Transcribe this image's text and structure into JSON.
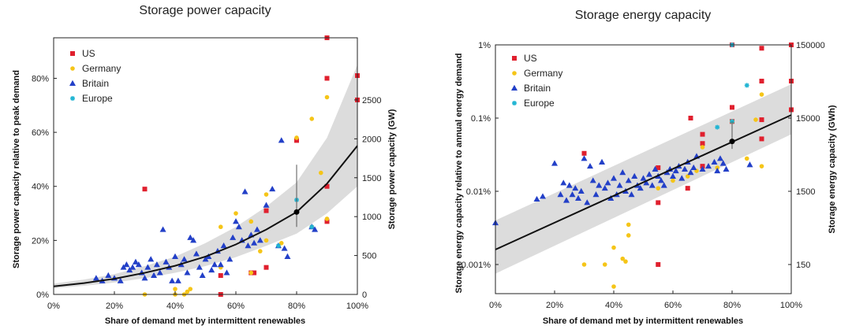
{
  "chart_data": [
    {
      "type": "scatter",
      "title": "Storage power capacity",
      "xlabel": "Share of demand met by intermittent renewables",
      "ylabel": "Storage power capacity relative to peak demand",
      "ylabel_right": "Storage power capacity (GW)",
      "xlim": [
        0,
        100
      ],
      "ylim": [
        0,
        95
      ],
      "yscale": "linear",
      "x_ticks": [
        0,
        20,
        40,
        60,
        80,
        100
      ],
      "x_tick_labels": [
        "0%",
        "20%",
        "40%",
        "60%",
        "80%",
        "100%"
      ],
      "y_ticks": [
        0,
        20,
        40,
        60,
        80
      ],
      "y_tick_labels": [
        "0%",
        "20%",
        "40%",
        "60%",
        "80%"
      ],
      "y2_ticks": [
        0,
        14.4,
        28.8,
        43.2,
        57.6,
        72.0
      ],
      "y2_tick_labels": [
        "0",
        "500",
        "1000",
        "1500",
        "2000",
        "2500"
      ],
      "legend_position": "top-left",
      "legend": [
        "US",
        "Germany",
        "Britain",
        "Europe"
      ],
      "trend": {
        "x": [
          0,
          10,
          20,
          30,
          40,
          50,
          60,
          70,
          80,
          90,
          100
        ],
        "y": [
          3,
          4.2,
          5.8,
          8,
          10.6,
          14,
          18.5,
          24,
          30.5,
          41,
          55
        ]
      },
      "band_upper": [
        4,
        5.5,
        7.5,
        10.5,
        14,
        19,
        25,
        32.5,
        41.5,
        58,
        85
      ],
      "band_lower": [
        2.3,
        3.2,
        4.4,
        6,
        8,
        10.5,
        13.8,
        18,
        22.5,
        30,
        40
      ],
      "errorbar": {
        "x": 80,
        "y": 30.5,
        "low": 25,
        "high": 48
      },
      "series": [
        {
          "name": "US",
          "color": "#e0202e",
          "marker": "square",
          "points": [
            [
              30,
              39
            ],
            [
              55,
              7
            ],
            [
              55,
              0
            ],
            [
              65,
              8
            ],
            [
              66,
              8
            ],
            [
              70,
              31
            ],
            [
              70,
              10
            ],
            [
              80,
              57
            ],
            [
              90,
              95
            ],
            [
              90,
              80
            ],
            [
              90,
              27
            ],
            [
              90,
              40
            ],
            [
              100,
              81
            ],
            [
              100,
              72
            ]
          ]
        },
        {
          "name": "Germany",
          "color": "#f5c518",
          "marker": "circle",
          "points": [
            [
              30,
              0
            ],
            [
              40,
              2
            ],
            [
              40,
              0
            ],
            [
              43,
              0
            ],
            [
              44,
              1
            ],
            [
              45,
              2
            ],
            [
              55,
              25
            ],
            [
              55,
              10
            ],
            [
              60,
              30
            ],
            [
              65,
              8
            ],
            [
              65,
              27
            ],
            [
              68,
              16
            ],
            [
              70,
              37
            ],
            [
              70,
              20
            ],
            [
              75,
              19
            ],
            [
              80,
              58
            ],
            [
              85,
              65
            ],
            [
              85,
              25
            ],
            [
              88,
              45
            ],
            [
              90,
              73
            ],
            [
              90,
              28
            ]
          ]
        },
        {
          "name": "Britain",
          "color": "#2340c8",
          "marker": "triangle",
          "points": [
            [
              14,
              6
            ],
            [
              16,
              5
            ],
            [
              18,
              7
            ],
            [
              20,
              6
            ],
            [
              22,
              5
            ],
            [
              23,
              10
            ],
            [
              24,
              11
            ],
            [
              25,
              9
            ],
            [
              26,
              10
            ],
            [
              27,
              12
            ],
            [
              28,
              11
            ],
            [
              29,
              8
            ],
            [
              30,
              6
            ],
            [
              31,
              10
            ],
            [
              32,
              13
            ],
            [
              33,
              7
            ],
            [
              34,
              11
            ],
            [
              35,
              8
            ],
            [
              36,
              24
            ],
            [
              37,
              12
            ],
            [
              38,
              10
            ],
            [
              39,
              5
            ],
            [
              40,
              14
            ],
            [
              41,
              5
            ],
            [
              42,
              11
            ],
            [
              43,
              13
            ],
            [
              44,
              8
            ],
            [
              45,
              21
            ],
            [
              46,
              20
            ],
            [
              47,
              15
            ],
            [
              48,
              10
            ],
            [
              49,
              7
            ],
            [
              50,
              13
            ],
            [
              51,
              14
            ],
            [
              52,
              9
            ],
            [
              53,
              11
            ],
            [
              54,
              16
            ],
            [
              55,
              11
            ],
            [
              56,
              18
            ],
            [
              57,
              8
            ],
            [
              58,
              13
            ],
            [
              59,
              21
            ],
            [
              60,
              27
            ],
            [
              61,
              25
            ],
            [
              62,
              20
            ],
            [
              63,
              38
            ],
            [
              64,
              18
            ],
            [
              65,
              22
            ],
            [
              66,
              19
            ],
            [
              67,
              24
            ],
            [
              68,
              20
            ],
            [
              70,
              33
            ],
            [
              72,
              39
            ],
            [
              74,
              18
            ],
            [
              75,
              57
            ],
            [
              76,
              17
            ],
            [
              77,
              14
            ],
            [
              85,
              25
            ],
            [
              86,
              24
            ]
          ]
        },
        {
          "name": "Europe",
          "color": "#22b5d3",
          "marker": "star",
          "points": [
            [
              80,
              35
            ],
            [
              85,
              25
            ],
            [
              74,
              18
            ]
          ]
        }
      ]
    },
    {
      "type": "scatter",
      "title": "Storage energy capacity",
      "xlabel": "Share of demand met by intermittent renewables",
      "ylabel": "Storage energy capacity relative to annual energy demand",
      "ylabel_right": "Storage energy capacity (GWh)",
      "xlim": [
        0,
        100
      ],
      "ylim": [
        0.0004,
        1
      ],
      "yscale": "log",
      "x_ticks": [
        0,
        20,
        40,
        60,
        80,
        100
      ],
      "x_tick_labels": [
        "0%",
        "20%",
        "40%",
        "60%",
        "80%",
        "100%"
      ],
      "y_ticks": [
        0.001,
        0.01,
        0.1,
        1
      ],
      "y_tick_labels": [
        "0.001%",
        "0.01%",
        "0.1%",
        "1%"
      ],
      "y2_ticks": [
        0.001,
        0.01,
        0.1,
        1
      ],
      "y2_tick_labels": [
        "150",
        "1500",
        "15000",
        "150000"
      ],
      "legend_position": "top-left",
      "legend": [
        "US",
        "Germany",
        "Britain",
        "Europe"
      ],
      "trend": {
        "x": [
          0,
          100
        ],
        "y": [
          0.0016,
          0.11
        ]
      },
      "band_upper": {
        "x": [
          0,
          100
        ],
        "y": [
          0.004,
          0.29
        ]
      },
      "band_lower": {
        "x": [
          0,
          100
        ],
        "y": [
          0.00075,
          0.06
        ]
      },
      "errorbar": {
        "x": 80,
        "y": 0.048,
        "low": 0.038,
        "high": 0.09
      },
      "series": [
        {
          "name": "US",
          "color": "#e0202e",
          "marker": "square",
          "points": [
            [
              30,
              0.033
            ],
            [
              55,
              0.021
            ],
            [
              55,
              0.007
            ],
            [
              55,
              0.001
            ],
            [
              65,
              0.011
            ],
            [
              66,
              0.1
            ],
            [
              70,
              0.045
            ],
            [
              70,
              0.06
            ],
            [
              70,
              0.022
            ],
            [
              80,
              0.14
            ],
            [
              80,
              0.09
            ],
            [
              80,
              1.0
            ],
            [
              90,
              0.9
            ],
            [
              90,
              0.32
            ],
            [
              90,
              0.095
            ],
            [
              90,
              0.052
            ],
            [
              100,
              1.0
            ],
            [
              100,
              0.32
            ],
            [
              100,
              0.13
            ]
          ]
        },
        {
          "name": "Germany",
          "color": "#f5c518",
          "marker": "circle",
          "points": [
            [
              30,
              0.001
            ],
            [
              37,
              0.001
            ],
            [
              40,
              0.0017
            ],
            [
              40,
              0.0005
            ],
            [
              43,
              0.0012
            ],
            [
              44,
              0.0011
            ],
            [
              45,
              0.0025
            ],
            [
              45,
              0.0035
            ],
            [
              55,
              0.011
            ],
            [
              60,
              0.014
            ],
            [
              65,
              0.016
            ],
            [
              68,
              0.019
            ],
            [
              70,
              0.04
            ],
            [
              75,
              0.021
            ],
            [
              80,
              0.09
            ],
            [
              85,
              0.028
            ],
            [
              88,
              0.095
            ],
            [
              90,
              0.21
            ],
            [
              90,
              0.022
            ]
          ]
        },
        {
          "name": "Britain",
          "color": "#2340c8",
          "marker": "triangle",
          "points": [
            [
              0,
              0.0037
            ],
            [
              14,
              0.0078
            ],
            [
              16,
              0.0085
            ],
            [
              20,
              0.024
            ],
            [
              22,
              0.009
            ],
            [
              23,
              0.013
            ],
            [
              24,
              0.0075
            ],
            [
              25,
              0.012
            ],
            [
              26,
              0.009
            ],
            [
              27,
              0.011
            ],
            [
              28,
              0.008
            ],
            [
              29,
              0.01
            ],
            [
              30,
              0.028
            ],
            [
              31,
              0.007
            ],
            [
              32,
              0.022
            ],
            [
              33,
              0.014
            ],
            [
              34,
              0.009
            ],
            [
              35,
              0.012
            ],
            [
              36,
              0.025
            ],
            [
              37,
              0.011
            ],
            [
              38,
              0.013
            ],
            [
              39,
              0.008
            ],
            [
              40,
              0.015
            ],
            [
              41,
              0.009
            ],
            [
              42,
              0.012
            ],
            [
              43,
              0.018
            ],
            [
              44,
              0.01
            ],
            [
              45,
              0.014
            ],
            [
              46,
              0.009
            ],
            [
              47,
              0.016
            ],
            [
              48,
              0.012
            ],
            [
              49,
              0.011
            ],
            [
              50,
              0.015
            ],
            [
              51,
              0.013
            ],
            [
              52,
              0.017
            ],
            [
              53,
              0.012
            ],
            [
              54,
              0.02
            ],
            [
              55,
              0.016
            ],
            [
              56,
              0.014
            ],
            [
              57,
              0.012
            ],
            [
              58,
              0.018
            ],
            [
              59,
              0.02
            ],
            [
              60,
              0.016
            ],
            [
              61,
              0.019
            ],
            [
              62,
              0.022
            ],
            [
              63,
              0.015
            ],
            [
              64,
              0.02
            ],
            [
              65,
              0.025
            ],
            [
              66,
              0.018
            ],
            [
              67,
              0.021
            ],
            [
              68,
              0.03
            ],
            [
              70,
              0.02
            ],
            [
              72,
              0.022
            ],
            [
              74,
              0.025
            ],
            [
              75,
              0.019
            ],
            [
              76,
              0.028
            ],
            [
              77,
              0.024
            ],
            [
              78,
              0.02
            ],
            [
              86,
              0.023
            ]
          ]
        },
        {
          "name": "Europe",
          "color": "#22b5d3",
          "marker": "star",
          "points": [
            [
              75,
              0.075
            ],
            [
              80,
              0.09
            ],
            [
              85,
              0.28
            ],
            [
              80,
              1.0
            ]
          ]
        }
      ]
    }
  ]
}
